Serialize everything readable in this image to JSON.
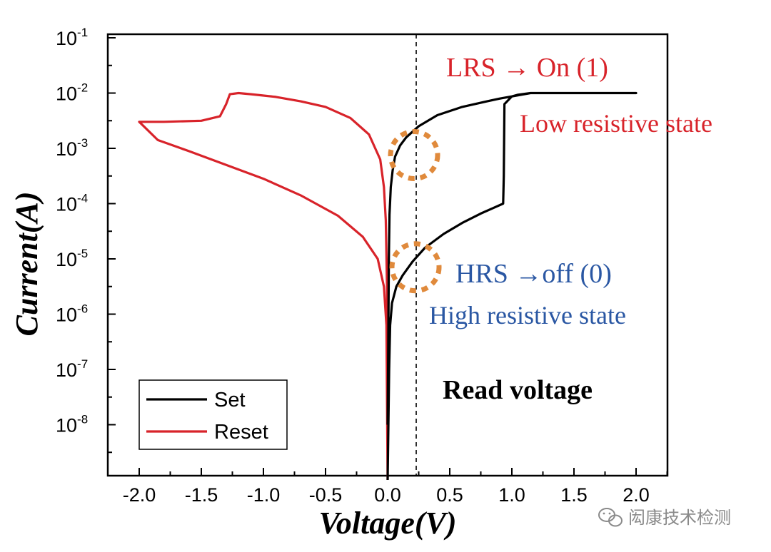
{
  "chart_data": {
    "type": "line",
    "xlabel": "Voltage(V)",
    "ylabel": "Current(A)",
    "xlim": [
      -2.2,
      2.25
    ],
    "ylim_log10": [
      -9,
      -1
    ],
    "y_scale": "log",
    "x_ticks": [
      -2.0,
      -1.5,
      -1.0,
      -0.5,
      0.0,
      0.5,
      1.0,
      1.5,
      2.0
    ],
    "x_tick_labels": [
      "-2.0",
      "-1.5",
      "-1.0",
      "-0.5",
      "0.0",
      "0.5",
      "1.0",
      "1.5",
      "2.0"
    ],
    "y_ticks": [
      {
        "base": "10",
        "exp": "-1",
        "log": -1
      },
      {
        "base": "10",
        "exp": "-2",
        "log": -2
      },
      {
        "base": "10",
        "exp": "-3",
        "log": -3
      },
      {
        "base": "10",
        "exp": "-4",
        "log": -4
      },
      {
        "base": "10",
        "exp": "-5",
        "log": -5
      },
      {
        "base": "10",
        "exp": "-6",
        "log": -6
      },
      {
        "base": "10",
        "exp": "-7",
        "log": -7
      },
      {
        "base": "10",
        "exp": "-8",
        "log": -8
      }
    ],
    "read_voltage": 0.23,
    "series": [
      {
        "name": "Set",
        "color": "#000000",
        "points": [
          [
            0.0,
            -9.0
          ],
          [
            0.012,
            -7.0
          ],
          [
            0.02,
            -6.2
          ],
          [
            0.035,
            -5.8
          ],
          [
            0.07,
            -5.5
          ],
          [
            0.12,
            -5.3
          ],
          [
            0.2,
            -5.05
          ],
          [
            0.3,
            -4.8
          ],
          [
            0.45,
            -4.55
          ],
          [
            0.6,
            -4.35
          ],
          [
            0.75,
            -4.18
          ],
          [
            0.85,
            -4.08
          ],
          [
            0.93,
            -4.0
          ],
          [
            0.935,
            -3.5
          ],
          [
            0.94,
            -2.2
          ],
          [
            1.0,
            -2.06
          ],
          [
            1.05,
            -2.03
          ],
          [
            1.15,
            -2.0
          ],
          [
            1.5,
            -2.0
          ],
          [
            2.0,
            -2.0
          ],
          [
            1.5,
            -2.0
          ],
          [
            1.15,
            -2.0
          ],
          [
            1.0,
            -2.06
          ],
          [
            0.9,
            -2.1
          ],
          [
            0.8,
            -2.15
          ],
          [
            0.6,
            -2.25
          ],
          [
            0.4,
            -2.4
          ],
          [
            0.25,
            -2.6
          ],
          [
            0.15,
            -2.8
          ],
          [
            0.1,
            -2.95
          ],
          [
            0.06,
            -3.15
          ],
          [
            0.04,
            -3.4
          ],
          [
            0.025,
            -3.7
          ],
          [
            0.015,
            -4.2
          ],
          [
            0.01,
            -5.0
          ],
          [
            0.005,
            -6.5
          ],
          [
            0.0,
            -8.0
          ]
        ]
      },
      {
        "name": "Reset",
        "color": "#d8232a",
        "points": [
          [
            0.0,
            -9.0
          ],
          [
            -0.005,
            -7.5
          ],
          [
            -0.01,
            -6.2
          ],
          [
            -0.03,
            -5.5
          ],
          [
            -0.08,
            -5.0
          ],
          [
            -0.2,
            -4.6
          ],
          [
            -0.4,
            -4.22
          ],
          [
            -0.7,
            -3.85
          ],
          [
            -1.0,
            -3.55
          ],
          [
            -1.3,
            -3.3
          ],
          [
            -1.6,
            -3.05
          ],
          [
            -1.85,
            -2.85
          ],
          [
            -2.0,
            -2.52
          ],
          [
            -1.8,
            -2.52
          ],
          [
            -1.5,
            -2.5
          ],
          [
            -1.35,
            -2.42
          ],
          [
            -1.3,
            -2.2
          ],
          [
            -1.27,
            -2.02
          ],
          [
            -1.2,
            -2.0
          ],
          [
            -1.1,
            -2.02
          ],
          [
            -0.9,
            -2.07
          ],
          [
            -0.7,
            -2.15
          ],
          [
            -0.5,
            -2.25
          ],
          [
            -0.3,
            -2.45
          ],
          [
            -0.15,
            -2.75
          ],
          [
            -0.06,
            -3.2
          ],
          [
            -0.03,
            -3.7
          ],
          [
            -0.015,
            -4.3
          ],
          [
            -0.005,
            -5.5
          ],
          [
            0.0,
            -7.0
          ]
        ]
      }
    ],
    "legend": {
      "position": "bottom-left",
      "entries": [
        "Set",
        "Reset"
      ]
    },
    "annotations": {
      "lrs": "LRS → On (1)",
      "lrs_sub": "Low resistive state",
      "hrs": "HRS →off (0)",
      "hrs_sub": "High resistive state",
      "read": "Read voltage"
    },
    "highlight_circles": [
      {
        "x": 0.23,
        "log": -3.2
      },
      {
        "x": 0.23,
        "log": -5.1
      }
    ]
  },
  "watermark": "闳康技术检测",
  "colors": {
    "set": "#000000",
    "reset": "#d8232a",
    "circle": "#e08a3c",
    "blue_text": "#2a57a3"
  }
}
